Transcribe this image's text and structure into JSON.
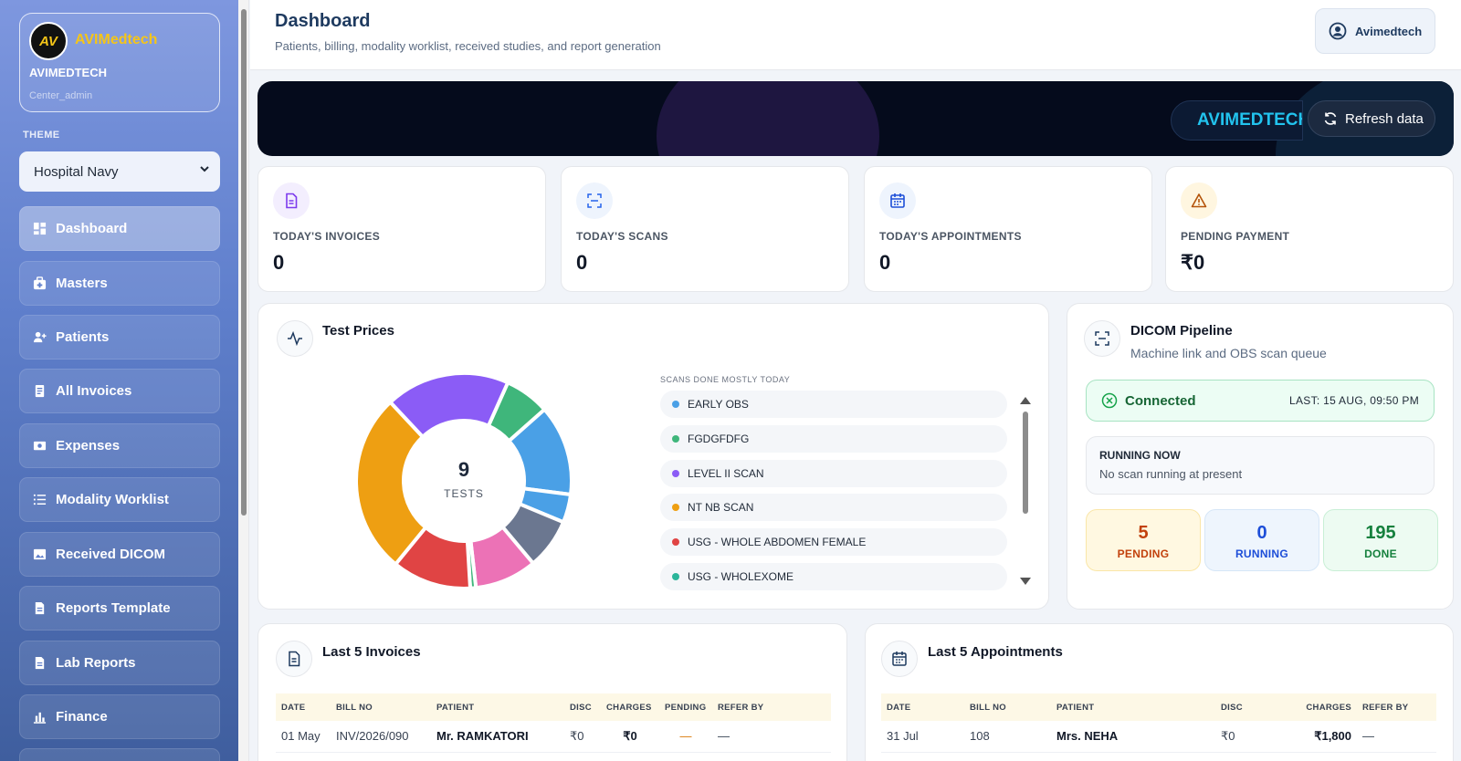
{
  "sidebar": {
    "brand": {
      "logo_text": "AV",
      "name": "AVIMedtech",
      "org": "AVIMEDTECH",
      "role": "Center_admin"
    },
    "theme_label": "THEME",
    "theme_value": "Hospital Navy",
    "items": [
      {
        "label": "Dashboard",
        "icon": "dashboard-icon",
        "active": true
      },
      {
        "label": "Masters",
        "icon": "briefcase-medical-icon"
      },
      {
        "label": "Patients",
        "icon": "user-plus-icon"
      },
      {
        "label": "All Invoices",
        "icon": "invoice-icon"
      },
      {
        "label": "Expenses",
        "icon": "money-icon"
      },
      {
        "label": "Modality Worklist",
        "icon": "list-icon"
      },
      {
        "label": "Received DICOM",
        "icon": "image-icon"
      },
      {
        "label": "Reports Template",
        "icon": "file-icon"
      },
      {
        "label": "Lab Reports",
        "icon": "file-icon"
      },
      {
        "label": "Finance",
        "icon": "bar-chart-icon"
      }
    ]
  },
  "header": {
    "title": "Dashboard",
    "subtitle": "Patients, billing, modality worklist, received studies, and report generation",
    "user": "Avimedtech"
  },
  "banner": {
    "ticker": "AVIMEDTECH",
    "refresh_label": "Refresh data"
  },
  "stats": [
    {
      "label": "TODAY'S INVOICES",
      "value": "0",
      "icon": "invoice-icon",
      "color": "#7c3aed",
      "bg": "#f3eefe"
    },
    {
      "label": "TODAY'S SCANS",
      "value": "0",
      "icon": "scan-icon",
      "color": "#2563eb",
      "bg": "#eef4fd"
    },
    {
      "label": "TODAY'S APPOINTMENTS",
      "value": "0",
      "icon": "calendar-icon",
      "color": "#1d4ed8",
      "bg": "#eef4fd"
    },
    {
      "label": "PENDING PAYMENT",
      "value": "₹0",
      "icon": "warning-icon",
      "color": "#b45309",
      "bg": "#fff6e0"
    }
  ],
  "test_prices": {
    "title": "Test Prices",
    "center_value": "9",
    "center_label": "TESTS",
    "legend_caption": "SCANS DONE MOSTLY TODAY"
  },
  "chart_data": {
    "type": "pie",
    "center_value": "9",
    "center_label": "TESTS",
    "slices": [
      {
        "label": "",
        "value": 8,
        "color": "#3fb67b"
      },
      {
        "label": "",
        "value": 16,
        "color": "#4aa0e6"
      },
      {
        "label": "",
        "value": 5,
        "color": "#4aa0e6"
      },
      {
        "label": "",
        "value": 9,
        "color": "#6b7790"
      },
      {
        "label": "",
        "value": 11,
        "color": "#ec72b6"
      },
      {
        "label": "",
        "value": 1,
        "color": "#3fb67b"
      },
      {
        "label": "",
        "value": 14,
        "color": "#e04444"
      },
      {
        "label": "",
        "value": 32,
        "color": "#ee9f12"
      },
      {
        "label": "",
        "value": 22,
        "color": "#8b5cf6"
      }
    ],
    "legend": [
      {
        "label": "EARLY OBS",
        "color": "#4aa0e6"
      },
      {
        "label": "FGDGFDFG",
        "color": "#3fb67b"
      },
      {
        "label": "LEVEL II SCAN",
        "color": "#8b5cf6"
      },
      {
        "label": "NT NB SCAN",
        "color": "#ee9f12"
      },
      {
        "label": "USG - WHOLE ABDOMEN FEMALE",
        "color": "#e04444"
      },
      {
        "label": "USG - WHOLEXOME",
        "color": "#2bb59a"
      }
    ]
  },
  "dicom": {
    "title": "DICOM Pipeline",
    "subtitle": "Machine link and OBS scan queue",
    "status": "Connected",
    "last": "LAST: 15 AUG, 09:50 PM",
    "running_title": "RUNNING NOW",
    "running_text": "No scan running at present",
    "counts": [
      {
        "value": "5",
        "label": "PENDING",
        "color": "#c2410c",
        "bg": "#fff8e1",
        "border": "#fae6a8"
      },
      {
        "value": "0",
        "label": "RUNNING",
        "color": "#1d4ed8",
        "bg": "#eef5fd",
        "border": "#d6e6f7"
      },
      {
        "value": "195",
        "label": "DONE",
        "color": "#15803d",
        "bg": "#edfbf2",
        "border": "#c9efd6"
      }
    ]
  },
  "invoices": {
    "title": "Last 5 Invoices",
    "columns": [
      "DATE",
      "BILL NO",
      "PATIENT",
      "DISC",
      "CHARGES",
      "PENDING",
      "REFER BY"
    ],
    "rows": [
      [
        "01 May",
        "INV/2026/090",
        "Mr. RAMKATORI",
        "₹0",
        "₹0",
        "—",
        "—"
      ]
    ]
  },
  "appointments": {
    "title": "Last 5 Appointments",
    "columns": [
      "DATE",
      "BILL NO",
      "PATIENT",
      "DISC",
      "CHARGES",
      "REFER BY"
    ],
    "rows": [
      [
        "31 Jul",
        "108",
        "Mrs. NEHA",
        "₹0",
        "₹1,800",
        "—"
      ]
    ]
  }
}
